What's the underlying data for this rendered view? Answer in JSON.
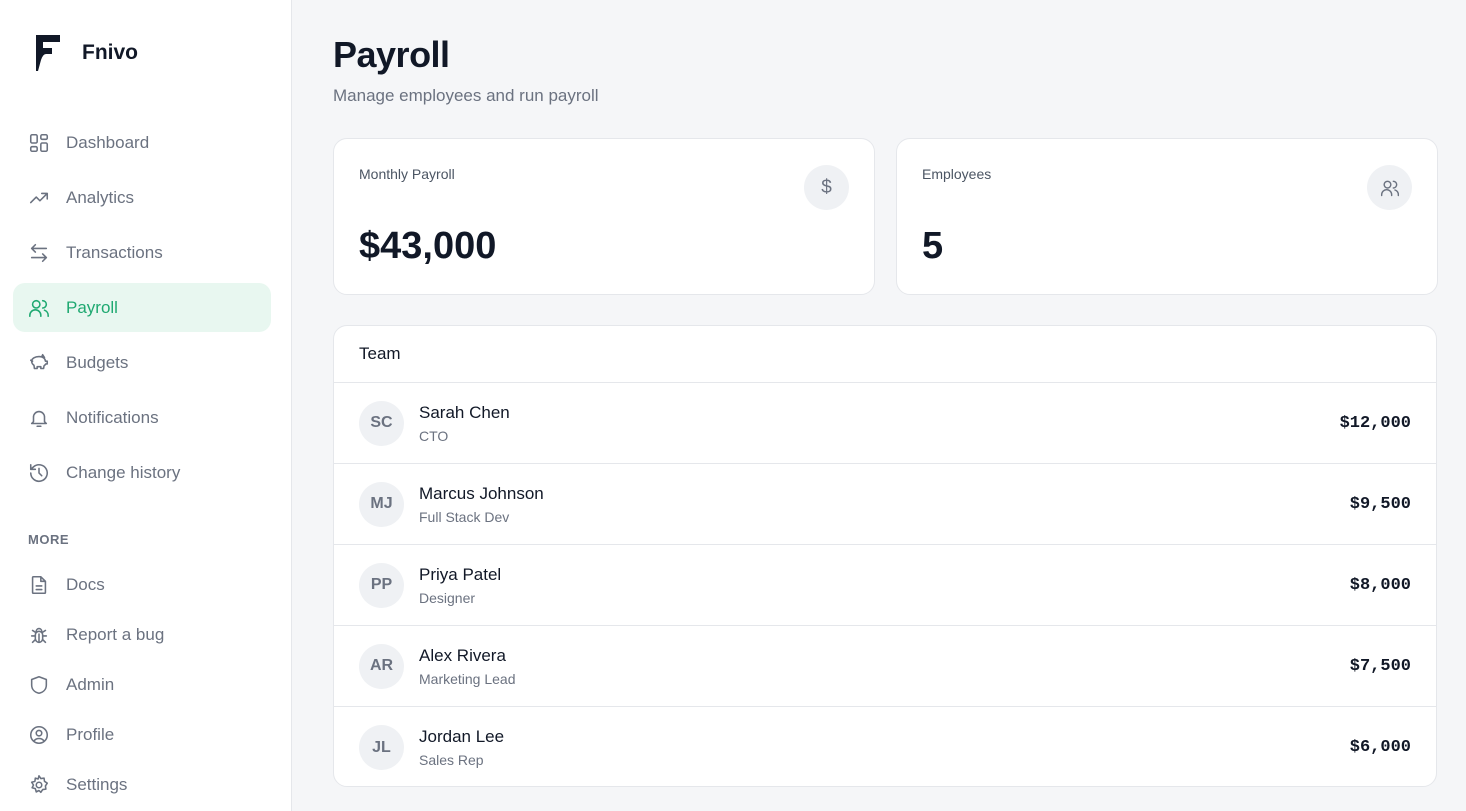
{
  "brand": {
    "name": "Fnivo"
  },
  "sidebar": {
    "items": [
      {
        "label": "Dashboard",
        "icon": "dashboard-icon"
      },
      {
        "label": "Analytics",
        "icon": "trending-up-icon"
      },
      {
        "label": "Transactions",
        "icon": "arrows-exchange-icon"
      },
      {
        "label": "Payroll",
        "icon": "users-icon",
        "active": true
      },
      {
        "label": "Budgets",
        "icon": "piggy-bank-icon"
      },
      {
        "label": "Notifications",
        "icon": "bell-icon"
      },
      {
        "label": "Change history",
        "icon": "history-icon"
      }
    ],
    "more_label": "MORE",
    "more_items": [
      {
        "label": "Docs",
        "icon": "document-icon"
      },
      {
        "label": "Report a bug",
        "icon": "bug-icon"
      },
      {
        "label": "Admin",
        "icon": "shield-icon"
      },
      {
        "label": "Profile",
        "icon": "user-circle-icon"
      },
      {
        "label": "Settings",
        "icon": "gear-icon"
      }
    ],
    "accent": "#1fa971"
  },
  "header": {
    "title": "Payroll",
    "subtitle": "Manage employees and run payroll"
  },
  "stats": [
    {
      "label": "Monthly Payroll",
      "value": "$43,000",
      "icon": "dollar-icon"
    },
    {
      "label": "Employees",
      "value": "5",
      "icon": "users-icon"
    }
  ],
  "team": {
    "title": "Team",
    "members": [
      {
        "initials": "SC",
        "name": "Sarah Chen",
        "role": "CTO",
        "salary": "$12,000"
      },
      {
        "initials": "MJ",
        "name": "Marcus Johnson",
        "role": "Full Stack Dev",
        "salary": "$9,500"
      },
      {
        "initials": "PP",
        "name": "Priya Patel",
        "role": "Designer",
        "salary": "$8,000"
      },
      {
        "initials": "AR",
        "name": "Alex Rivera",
        "role": "Marketing Lead",
        "salary": "$7,500"
      },
      {
        "initials": "JL",
        "name": "Jordan Lee",
        "role": "Sales Rep",
        "salary": "$6,000"
      }
    ]
  }
}
